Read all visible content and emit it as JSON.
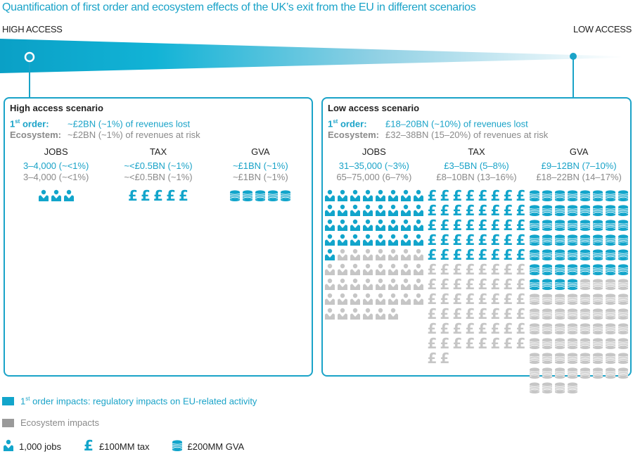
{
  "title": "Quantification of first order and ecosystem effects of the UK’s exit from the EU in different scenarios",
  "scale": {
    "left_label": "HIGH ACCESS",
    "right_label": "LOW ACCESS"
  },
  "colors": {
    "first_order": "#12a5cb",
    "ecosystem": "#c6c6c6",
    "accent": "#1aa3c8"
  },
  "scenarios": [
    {
      "title": "High access scenario",
      "first_order_label": "1st order:",
      "first_order_value": "~£2BN (~1%) of revenues lost",
      "eco_label": "Ecosystem:",
      "eco_value": "~£2BN (~1%) of revenues at risk",
      "metrics": [
        {
          "label": "JOBS",
          "first": "3–4,000 (~<1%)",
          "eco": "3–4,000 (~<1%)",
          "icon": "person-icon",
          "icons_first": 3,
          "icons_total": 3
        },
        {
          "label": "TAX",
          "first": "~<£0.5BN (~1%)",
          "eco": "~<£0.5BN (~1%)",
          "icon": "pound-icon",
          "icons_first": 5,
          "icons_total": 5
        },
        {
          "label": "GVA",
          "first": "~£1BN (~1%)",
          "eco": "~£1BN (~1%)",
          "icon": "coin-stack-icon",
          "icons_first": 5,
          "icons_total": 5
        }
      ]
    },
    {
      "title": "Low access scenario",
      "first_order_label": "1st order:",
      "first_order_value": "£18–20BN (~10%) of revenues lost",
      "eco_label": "Ecosystem:",
      "eco_value": "£32–38BN (15–20%) of revenues at risk",
      "metrics": [
        {
          "label": "JOBS",
          "first": "31–35,000 (~3%)",
          "eco": "65–75,000 (6–7%)",
          "icon": "person-icon",
          "icons_first": 33,
          "icons_total": 70
        },
        {
          "label": "TAX",
          "first": "£3–5BN (5–8%)",
          "eco": "£8–10BN (13–16%)",
          "icon": "pound-icon",
          "icons_first": 40,
          "icons_total": 90
        },
        {
          "label": "GVA",
          "first": "£9–12BN (7–10%)",
          "eco": "£18–22BN (14–17%)",
          "icon": "coin-stack-icon",
          "icons_first": 52,
          "icons_total": 108
        }
      ]
    }
  ],
  "legend": {
    "first_order": "1st order impacts: regulatory impacts on EU-related activity",
    "ecosystem": "Ecosystem impacts",
    "keys": [
      {
        "icon": "person-icon",
        "label": "1,000 jobs"
      },
      {
        "icon": "pound-icon",
        "label": "£100MM tax"
      },
      {
        "icon": "coin-stack-icon",
        "label": "£200MM GVA"
      }
    ]
  }
}
